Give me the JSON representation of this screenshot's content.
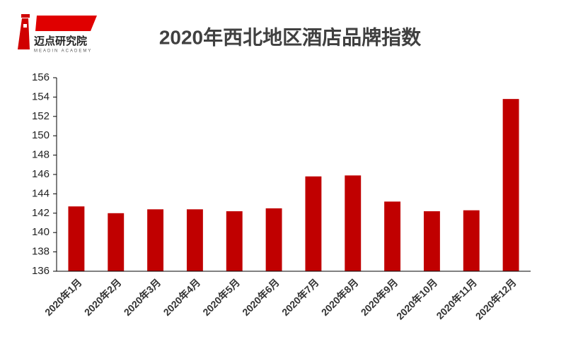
{
  "brand": {
    "name": "迈点研究院",
    "subtitle": "MEADIN ACADEMY"
  },
  "chart_data": {
    "type": "bar",
    "title": "2020年西北地区酒店品牌指数",
    "categories": [
      "2020年1月",
      "2020年2月",
      "2020年3月",
      "2020年4月",
      "2020年5月",
      "2020年6月",
      "2020年7月",
      "2020年8月",
      "2020年9月",
      "2020年10月",
      "2020年11月",
      "2020年12月"
    ],
    "values": [
      142.7,
      142.0,
      142.4,
      142.4,
      142.2,
      142.5,
      145.8,
      145.9,
      143.2,
      142.2,
      142.3,
      153.8
    ],
    "color": "#c00000",
    "ylim": [
      136,
      156
    ],
    "yticks": [
      136,
      138,
      140,
      142,
      144,
      146,
      148,
      150,
      152,
      154,
      156
    ],
    "grid": false
  }
}
